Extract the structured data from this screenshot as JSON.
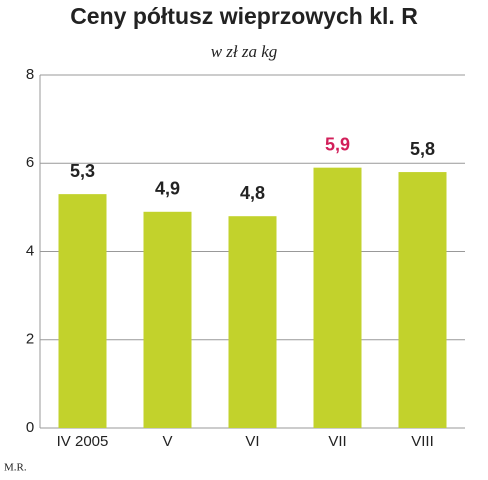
{
  "chart_data": {
    "type": "bar",
    "title": "Ceny półtusz wieprzowych kl. R",
    "subtitle": "w zł za kg",
    "categories": [
      "IV 2005",
      "V",
      "VI",
      "VII",
      "VIII"
    ],
    "values": [
      5.3,
      4.9,
      4.8,
      5.9,
      5.8
    ],
    "value_labels": [
      "5,3",
      "4,9",
      "4,8",
      "5,9",
      "5,8"
    ],
    "value_label_colors": [
      "#222222",
      "#222222",
      "#222222",
      "#d21f5a",
      "#222222"
    ],
    "color": "#c2d22c",
    "ylim": [
      0,
      8
    ],
    "yticks": [
      0,
      2,
      4,
      6,
      8
    ],
    "grid": true,
    "credit": "M.R."
  }
}
